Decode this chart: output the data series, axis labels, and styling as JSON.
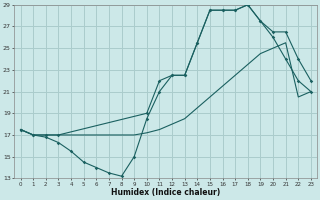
{
  "xlabel": "Humidex (Indice chaleur)",
  "bg_color": "#cce8e8",
  "grid_color": "#aacccc",
  "line_color": "#1a6060",
  "xlim": [
    -0.5,
    23.5
  ],
  "ylim": [
    13,
    29
  ],
  "xticks": [
    0,
    1,
    2,
    3,
    4,
    5,
    6,
    7,
    8,
    9,
    10,
    11,
    12,
    13,
    14,
    15,
    16,
    17,
    18,
    19,
    20,
    21,
    22,
    23
  ],
  "yticks": [
    13,
    15,
    17,
    19,
    21,
    23,
    25,
    27,
    29
  ],
  "line1_x": [
    0,
    1,
    2,
    3,
    4,
    5,
    6,
    7,
    8,
    9,
    10,
    11,
    12,
    13,
    14,
    15,
    16,
    17,
    18,
    19,
    20,
    21,
    22,
    23
  ],
  "line1_y": [
    17.5,
    17,
    16.8,
    16.3,
    15.5,
    14.5,
    14.0,
    13.5,
    13.2,
    15.0,
    18.5,
    21.0,
    22.5,
    22.5,
    25.5,
    28.5,
    28.5,
    28.5,
    29.0,
    27.5,
    26.0,
    24.0,
    22.0,
    21.0
  ],
  "line2_x": [
    0,
    1,
    2,
    3,
    4,
    5,
    6,
    7,
    8,
    9,
    10,
    11,
    12,
    13,
    14,
    15,
    16,
    17,
    18,
    19,
    20,
    21,
    22,
    23
  ],
  "line2_y": [
    17.5,
    17,
    17,
    17,
    17,
    17,
    17,
    17,
    17,
    17,
    17.2,
    17.5,
    18.0,
    18.5,
    19.5,
    20.5,
    21.5,
    22.5,
    23.5,
    24.5,
    25.0,
    25.5,
    20.5,
    21.0
  ],
  "line3_x": [
    0,
    1,
    2,
    3,
    10,
    11,
    12,
    13,
    14,
    15,
    16,
    17,
    18,
    19,
    20,
    21,
    22,
    23
  ],
  "line3_y": [
    17.5,
    17.0,
    17.0,
    17.0,
    19.0,
    22.0,
    22.5,
    22.5,
    25.5,
    28.5,
    28.5,
    28.5,
    29.0,
    27.5,
    26.5,
    26.5,
    24.0,
    22.0
  ]
}
